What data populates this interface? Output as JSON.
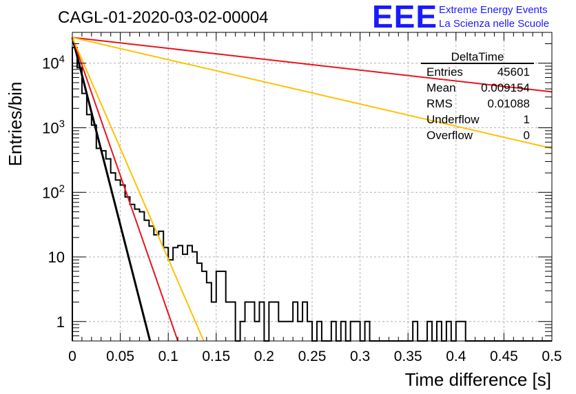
{
  "header": {
    "run_title": "CAGL-01-2020-03-02-00004",
    "logo_text": "EEE",
    "logo_line1": "Extreme Energy Events",
    "logo_line2": "La Scienza nelle Scuole"
  },
  "stats": {
    "title": "DeltaTime",
    "rows": [
      {
        "label": "Entries",
        "value": "45601"
      },
      {
        "label": "Mean",
        "value": "0.009154"
      },
      {
        "label": "RMS",
        "value": "0.01088"
      },
      {
        "label": "Underflow",
        "value": "1"
      },
      {
        "label": "Overflow",
        "value": "0"
      }
    ]
  },
  "colors": {
    "histogram": "#000000",
    "fit_black": "#000000",
    "fit_red": "#e8141b",
    "fit_yellow": "#ffc000",
    "grid": "#b0b0b0",
    "logo": "#1a1aff"
  },
  "chart_data": {
    "type": "histogram",
    "xlabel": "Time difference [s]",
    "ylabel": "Entries/bin",
    "xlim": [
      0,
      0.5
    ],
    "ylim": [
      0.5,
      30000
    ],
    "yscale": "log",
    "grid": true,
    "x_ticks": [
      "0",
      "0.05",
      "0.1",
      "0.15",
      "0.2",
      "0.25",
      "0.3",
      "0.35",
      "0.4",
      "0.45",
      "0.5"
    ],
    "y_ticks": [
      {
        "value": 1,
        "base": "1",
        "exp": ""
      },
      {
        "value": 10,
        "base": "10",
        "exp": ""
      },
      {
        "value": 100,
        "base": "10",
        "exp": "2"
      },
      {
        "value": 1000,
        "base": "10",
        "exp": "3"
      },
      {
        "value": 10000,
        "base": "10",
        "exp": "4"
      }
    ],
    "bin_width": 0.005,
    "bin_counts": [
      17500,
      8500,
      3400,
      1600,
      1100,
      480,
      440,
      330,
      200,
      155,
      130,
      85,
      65,
      55,
      50,
      37,
      30,
      22,
      25,
      14,
      9,
      14,
      15,
      11,
      15,
      12,
      8,
      6,
      4,
      2,
      6,
      6,
      2,
      2,
      0,
      1,
      2,
      2,
      1,
      2,
      0,
      2,
      2,
      1,
      1,
      1,
      2,
      1,
      2,
      1,
      0,
      1,
      0,
      0,
      1,
      0,
      1,
      0,
      1,
      1,
      0,
      1,
      0,
      0,
      0,
      0,
      0,
      0,
      0,
      0,
      0,
      1,
      0,
      0,
      1,
      0,
      1,
      0,
      1,
      0,
      1,
      1,
      0,
      0,
      0,
      0,
      0,
      0,
      0,
      0,
      0,
      0,
      0,
      0,
      0,
      0,
      0,
      0,
      0,
      0
    ],
    "series": [
      {
        "color": "black",
        "points": [
          [
            0,
            25000
          ],
          [
            0.081,
            0.5
          ]
        ]
      },
      {
        "color": "red",
        "points": [
          [
            0,
            25000
          ],
          [
            0.11,
            0.5
          ]
        ]
      },
      {
        "color": "yellow",
        "points": [
          [
            0,
            25000
          ],
          [
            0.137,
            0.5
          ]
        ]
      },
      {
        "color": "red",
        "points": [
          [
            0,
            25000
          ],
          [
            0.5,
            3600
          ]
        ]
      },
      {
        "color": "yellow",
        "points": [
          [
            0,
            25000
          ],
          [
            0.5,
            480
          ]
        ]
      }
    ]
  }
}
